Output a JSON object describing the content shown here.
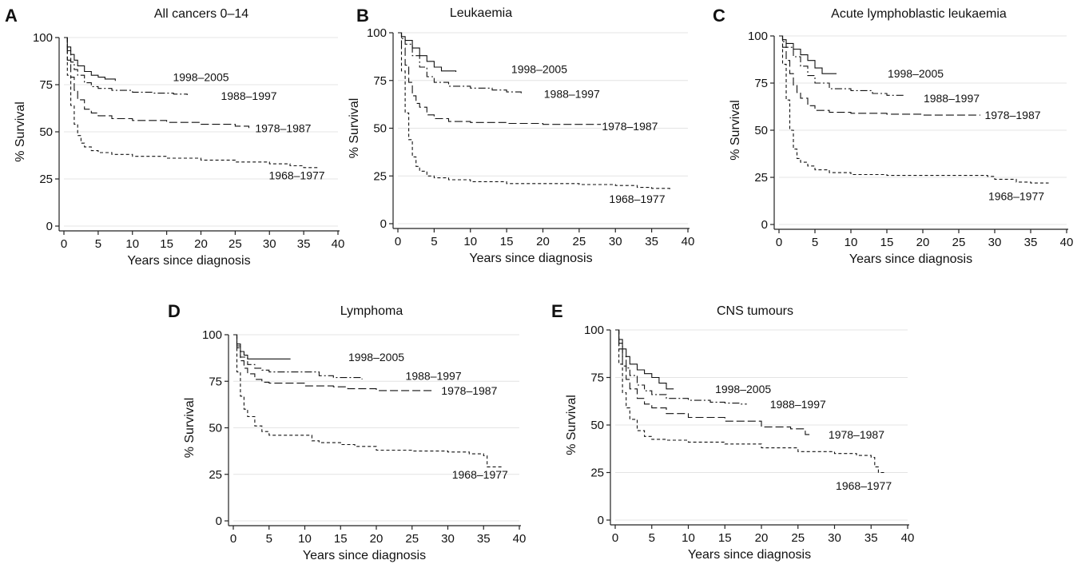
{
  "chart_data": [
    {
      "type": "line",
      "panel": "A",
      "title": "All cancers 0–14",
      "xlabel": "Years since diagnosis",
      "ylabel": "% Survival",
      "xlim": [
        0,
        40
      ],
      "ylim": [
        0,
        100
      ],
      "xticks": [
        0,
        5,
        10,
        15,
        20,
        25,
        30,
        35,
        40
      ],
      "yticks": [
        0,
        25,
        50,
        75,
        100
      ],
      "grid": true,
      "series": [
        {
          "name": "1998–2005",
          "style": "solid",
          "x": [
            0,
            0.5,
            1,
            1.5,
            2,
            3,
            4,
            5,
            6,
            7.5
          ],
          "y": [
            100,
            95,
            91,
            88,
            85,
            82,
            80,
            79,
            78,
            77
          ]
        },
        {
          "name": "1988–1997",
          "style": "dashdot",
          "x": [
            0,
            0.5,
            1,
            1.5,
            2,
            3,
            4,
            5,
            7,
            10,
            13,
            16,
            18
          ],
          "y": [
            100,
            93,
            87,
            83,
            80,
            76,
            74,
            73,
            72,
            71,
            70.5,
            70,
            69.5
          ]
        },
        {
          "name": "1978–1987",
          "style": "longdash",
          "x": [
            0,
            0.5,
            1,
            1.5,
            2,
            3,
            4,
            5,
            7,
            10,
            15,
            20,
            25,
            27
          ],
          "y": [
            100,
            88,
            79,
            72,
            67,
            62,
            60,
            58.5,
            57,
            56,
            55,
            54,
            53,
            52
          ]
        },
        {
          "name": "1968–1977",
          "style": "shortdash",
          "x": [
            0,
            0.5,
            1,
            1.5,
            2,
            2.5,
            3,
            4,
            5,
            7,
            10,
            15,
            20,
            25,
            30,
            33,
            35,
            37
          ],
          "y": [
            100,
            80,
            64,
            54,
            48,
            44,
            42,
            40,
            39,
            38,
            37,
            36,
            35,
            34,
            33,
            32,
            31,
            30
          ]
        }
      ],
      "series_labels": [
        {
          "text": "1998–2005",
          "x": 20,
          "y": 79
        },
        {
          "text": "1988–1997",
          "x": 27,
          "y": 69
        },
        {
          "text": "1978–1987",
          "x": 32,
          "y": 52
        },
        {
          "text": "1968–1977",
          "x": 34,
          "y": 27
        }
      ]
    },
    {
      "type": "line",
      "panel": "B",
      "title": "Leukaemia",
      "xlabel": "Years since diagnosis",
      "ylabel": "% Survival",
      "xlim": [
        0,
        40
      ],
      "ylim": [
        0,
        100
      ],
      "xticks": [
        0,
        5,
        10,
        15,
        20,
        25,
        30,
        35,
        40
      ],
      "yticks": [
        0,
        25,
        50,
        75,
        100
      ],
      "grid": true,
      "series": [
        {
          "name": "1998–2005",
          "style": "solid",
          "x": [
            0,
            0.5,
            1,
            2,
            3,
            4,
            5,
            6,
            8
          ],
          "y": [
            100,
            98,
            96,
            92,
            88,
            85,
            82,
            80,
            79.5
          ]
        },
        {
          "name": "1988–1997",
          "style": "dashdot",
          "x": [
            0,
            0.5,
            1,
            2,
            3,
            4,
            5,
            7,
            10,
            13,
            15,
            17
          ],
          "y": [
            100,
            97,
            94,
            88,
            82,
            77,
            74,
            72,
            71,
            70,
            69,
            68
          ]
        },
        {
          "name": "1978–1987",
          "style": "longdash",
          "x": [
            0,
            0.5,
            1,
            1.5,
            2,
            2.5,
            3,
            4,
            5,
            7,
            10,
            15,
            20,
            28
          ],
          "y": [
            100,
            92,
            83,
            74,
            67,
            63,
            61,
            57,
            55,
            53.5,
            53,
            52.5,
            52,
            52
          ]
        },
        {
          "name": "1968–1977",
          "style": "shortdash",
          "x": [
            0,
            0.5,
            1,
            1.5,
            2,
            2.5,
            3,
            4,
            5,
            7,
            10,
            15,
            20,
            25,
            30,
            33,
            35,
            37.5
          ],
          "y": [
            100,
            80,
            58,
            44,
            35,
            30,
            27.5,
            25,
            24,
            23,
            22,
            21,
            21,
            20.5,
            20,
            19,
            18.5,
            18
          ]
        }
      ],
      "series_labels": [
        {
          "text": "1998–2005",
          "x": 19.5,
          "y": 81
        },
        {
          "text": "1988–1997",
          "x": 24,
          "y": 68
        },
        {
          "text": "1978–1987",
          "x": 32,
          "y": 51
        },
        {
          "text": "1968–1977",
          "x": 33,
          "y": 13
        }
      ]
    },
    {
      "type": "line",
      "panel": "C",
      "title": "Acute lymphoblastic leukaemia",
      "xlabel": "Years since diagnosis",
      "ylabel": "% Survival",
      "xlim": [
        0,
        40
      ],
      "ylim": [
        0,
        100
      ],
      "xticks": [
        0,
        5,
        10,
        15,
        20,
        25,
        30,
        35,
        40
      ],
      "yticks": [
        0,
        25,
        50,
        75,
        100
      ],
      "grid": true,
      "series": [
        {
          "name": "1998–2005",
          "style": "solid",
          "x": [
            0,
            0.5,
            1,
            2,
            3,
            4,
            5,
            6,
            8
          ],
          "y": [
            100,
            98,
            96,
            93,
            90,
            87,
            83,
            80,
            80
          ]
        },
        {
          "name": "1988–1997",
          "style": "dashdot",
          "x": [
            0,
            0.5,
            1,
            2,
            3,
            4,
            5,
            7,
            10,
            13,
            15,
            17.5
          ],
          "y": [
            100,
            97,
            94,
            89,
            84,
            79,
            75,
            72,
            71,
            69.5,
            68.5,
            68
          ]
        },
        {
          "name": "1978–1987",
          "style": "longdash",
          "x": [
            0,
            0.5,
            1,
            1.5,
            2,
            2.5,
            3,
            4,
            5,
            7,
            10,
            15,
            20,
            28
          ],
          "y": [
            100,
            94,
            87,
            80,
            74,
            70,
            67,
            63,
            60.5,
            59.5,
            59,
            58.5,
            58,
            58
          ]
        },
        {
          "name": "1968–1977",
          "style": "shortdash",
          "x": [
            0,
            0.5,
            1,
            1.5,
            2,
            2.5,
            3,
            4,
            5,
            7,
            10,
            15,
            20,
            25,
            29,
            30,
            33,
            35,
            37.5
          ],
          "y": [
            100,
            85,
            66,
            50,
            40,
            35,
            33,
            31,
            29,
            27.5,
            26.5,
            26,
            26,
            26,
            25.5,
            24,
            22.5,
            22,
            22
          ]
        }
      ],
      "series_labels": [
        {
          "text": "1998–2005",
          "x": 19,
          "y": 80
        },
        {
          "text": "1988–1997",
          "x": 24,
          "y": 67
        },
        {
          "text": "1978–1987",
          "x": 32.5,
          "y": 58
        },
        {
          "text": "1968–1977",
          "x": 33,
          "y": 15
        }
      ]
    },
    {
      "type": "line",
      "panel": "D",
      "title": "Lymphoma",
      "xlabel": "Years since diagnosis",
      "ylabel": "% Survival",
      "xlim": [
        0,
        40
      ],
      "ylim": [
        0,
        100
      ],
      "xticks": [
        0,
        5,
        10,
        15,
        20,
        25,
        30,
        35,
        40
      ],
      "yticks": [
        0,
        25,
        50,
        75,
        100
      ],
      "grid": true,
      "series": [
        {
          "name": "1998–2005",
          "style": "solid",
          "x": [
            0,
            0.5,
            1,
            1.5,
            2,
            8
          ],
          "y": [
            100,
            95,
            91,
            89,
            87,
            87
          ]
        },
        {
          "name": "1988–1997",
          "style": "dashdot",
          "x": [
            0,
            0.5,
            1,
            2,
            3,
            4,
            5,
            10,
            12,
            14,
            16,
            18
          ],
          "y": [
            100,
            94,
            88,
            84,
            82,
            81,
            80,
            80,
            78,
            77,
            77,
            76
          ]
        },
        {
          "name": "1978–1987",
          "style": "longdash",
          "x": [
            0,
            0.5,
            1,
            1.5,
            2,
            3,
            4,
            5,
            10,
            14,
            16,
            20,
            25,
            28
          ],
          "y": [
            100,
            93,
            86,
            82,
            79,
            76,
            74.5,
            74,
            72.5,
            72,
            71,
            70,
            70,
            70
          ]
        },
        {
          "name": "1968–1977",
          "style": "shortdash",
          "x": [
            0,
            0.5,
            1,
            1.5,
            2,
            3,
            4,
            5,
            7,
            10,
            11,
            12,
            15,
            17,
            20,
            25,
            30,
            33,
            35,
            35.5,
            37.5
          ],
          "y": [
            100,
            80,
            67,
            60,
            56,
            51,
            48,
            46,
            46,
            46,
            43,
            42,
            41,
            40,
            38,
            37.5,
            37,
            36,
            35,
            29,
            29
          ]
        }
      ],
      "series_labels": [
        {
          "text": "1998–2005",
          "x": 20,
          "y": 88
        },
        {
          "text": "1988–1997",
          "x": 28,
          "y": 78
        },
        {
          "text": "1978–1987",
          "x": 33,
          "y": 70
        },
        {
          "text": "1968–1977",
          "x": 34.5,
          "y": 25
        }
      ]
    },
    {
      "type": "line",
      "panel": "E",
      "title": "CNS tumours",
      "xlabel": "Years since diagnosis",
      "ylabel": "% Survival",
      "xlim": [
        0,
        40
      ],
      "ylim": [
        0,
        100
      ],
      "xticks": [
        0,
        5,
        10,
        15,
        20,
        25,
        30,
        35,
        40
      ],
      "yticks": [
        0,
        25,
        50,
        75,
        100
      ],
      "grid": true,
      "series": [
        {
          "name": "1998–2005",
          "style": "solid",
          "x": [
            0,
            0.5,
            1,
            1.5,
            2,
            3,
            4,
            5,
            6,
            7,
            8
          ],
          "y": [
            100,
            95,
            90,
            86,
            82,
            79,
            77,
            75,
            72,
            69,
            69
          ]
        },
        {
          "name": "1988–1997",
          "style": "dashdot",
          "x": [
            0,
            0.5,
            1,
            1.5,
            2,
            3,
            4,
            5,
            7,
            10,
            13,
            15,
            17,
            18
          ],
          "y": [
            100,
            93,
            86,
            80,
            76,
            71,
            68,
            66,
            64,
            63,
            62,
            61.5,
            61,
            61
          ]
        },
        {
          "name": "1978–1987",
          "style": "longdash",
          "x": [
            0,
            0.5,
            1,
            1.5,
            2,
            3,
            4,
            5,
            7,
            10,
            15,
            20,
            24,
            26,
            27
          ],
          "y": [
            100,
            90,
            81,
            74,
            69,
            64,
            61,
            59,
            56,
            54,
            52,
            49,
            48,
            45,
            45
          ]
        },
        {
          "name": "1968–1977",
          "style": "shortdash",
          "x": [
            0,
            0.5,
            1,
            1.5,
            2,
            3,
            4,
            5,
            7,
            10,
            15,
            20,
            25,
            30,
            33,
            35,
            35.5,
            36,
            37
          ],
          "y": [
            100,
            82,
            67,
            59,
            53,
            47,
            44,
            42.5,
            42,
            41,
            40,
            38,
            36,
            35,
            34,
            33,
            28,
            25,
            25
          ]
        }
      ],
      "series_labels": [
        {
          "text": "1998–2005",
          "x": 17.5,
          "y": 69
        },
        {
          "text": "1988–1997",
          "x": 25,
          "y": 61
        },
        {
          "text": "1978–1987",
          "x": 33,
          "y": 45
        },
        {
          "text": "1968–1977",
          "x": 34,
          "y": 18
        }
      ]
    }
  ]
}
